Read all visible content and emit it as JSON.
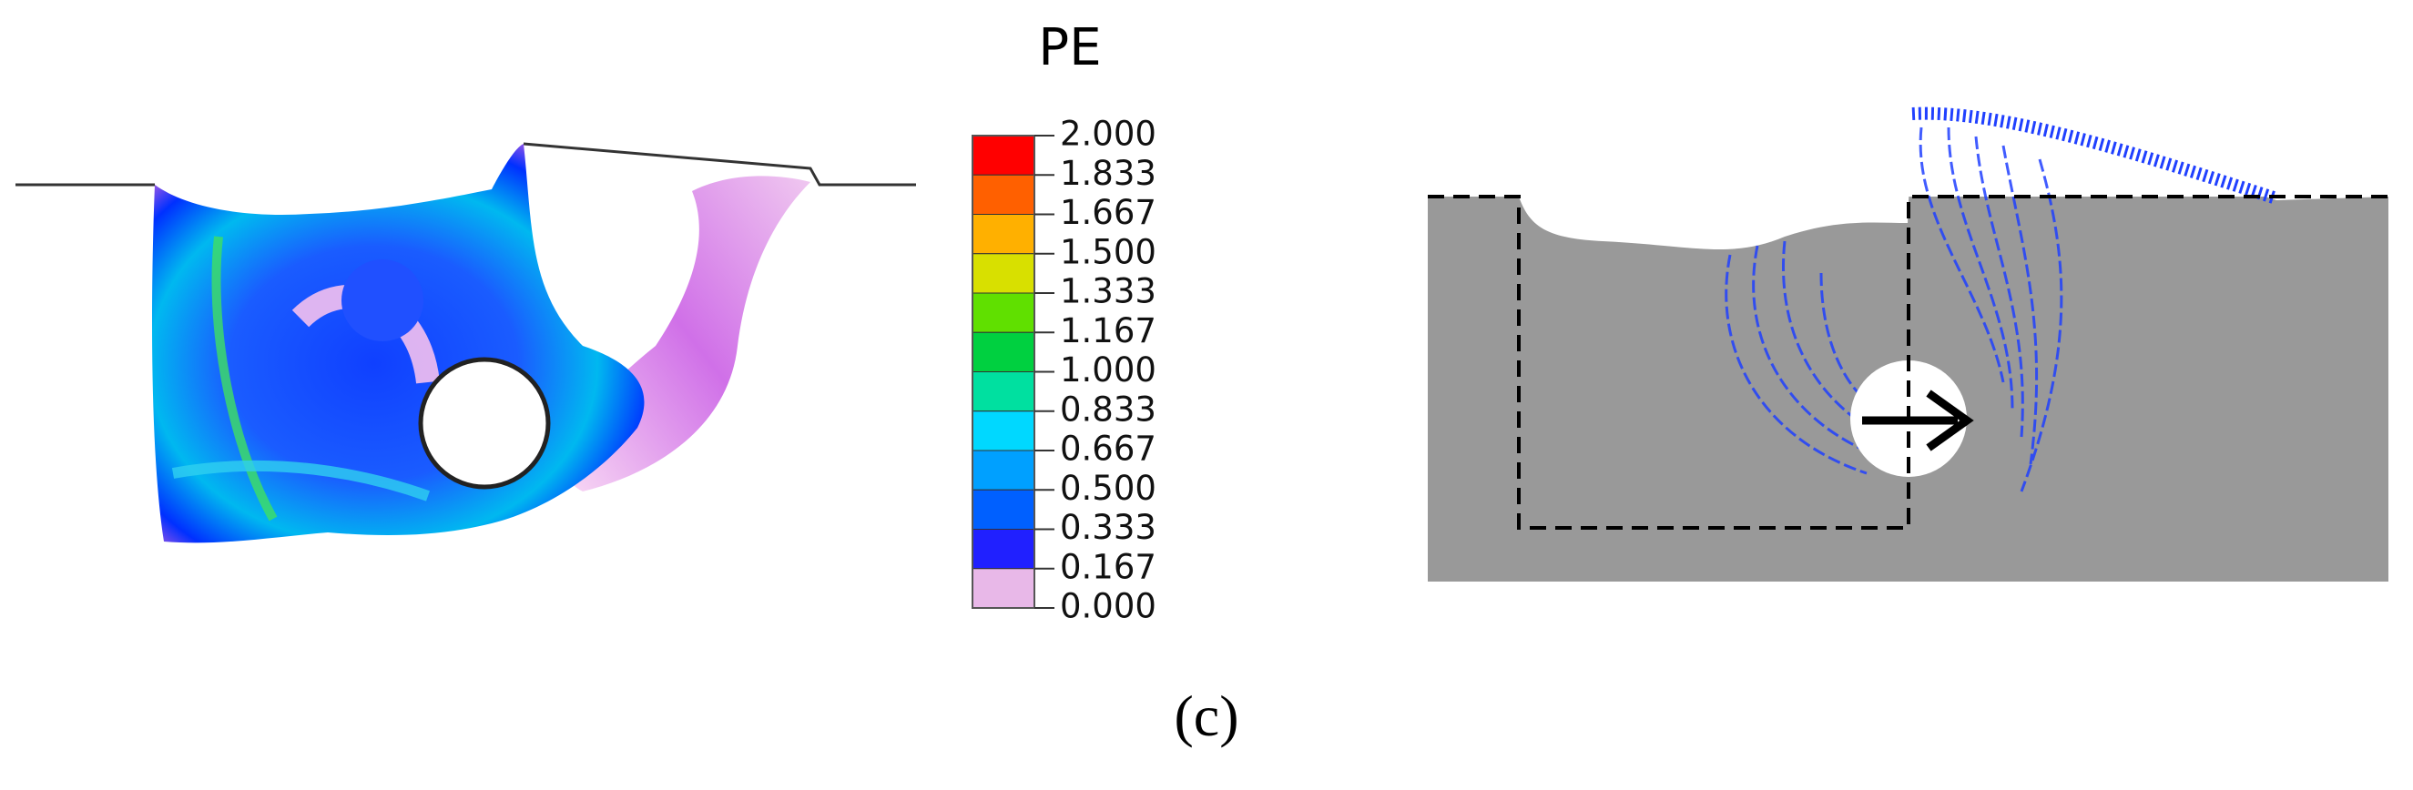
{
  "legend": {
    "title": "PE",
    "labels": [
      "2.000",
      "1.833",
      "1.667",
      "1.500",
      "1.333",
      "1.167",
      "1.000",
      "0.833",
      "0.667",
      "0.500",
      "0.333",
      "0.167",
      "0.000"
    ],
    "colors": [
      "#ff0000",
      "#ff6000",
      "#ffb000",
      "#d8e000",
      "#60e000",
      "#00d040",
      "#00e0a0",
      "#00d8ff",
      "#00a0ff",
      "#0060ff",
      "#2020ff",
      "#e8b8e8"
    ]
  },
  "caption": "(c)"
}
